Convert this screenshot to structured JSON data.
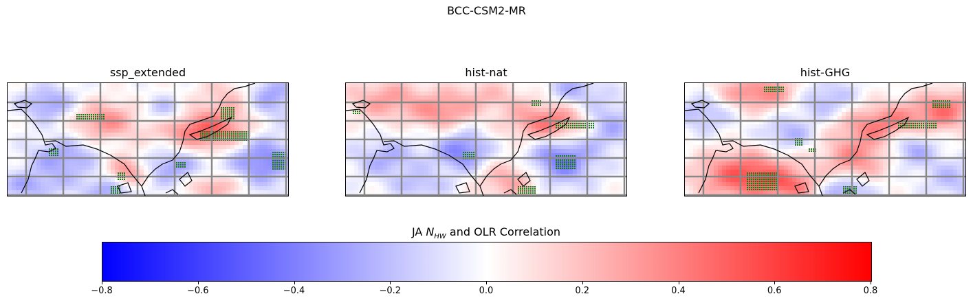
{
  "suptitle": "BCC-CSM2-MR",
  "chart_data": {
    "type": "heatmap",
    "title": "BCC-CSM2-MR",
    "panels": [
      {
        "title": "ssp_extended"
      },
      {
        "title": "hist-nat"
      },
      {
        "title": "hist-GHG"
      }
    ],
    "colorbar": {
      "label_prefix": "JA ",
      "label_symbol": "N",
      "label_subscript": "HW",
      "label_suffix": " and OLR Correlation",
      "range": [
        -0.8,
        0.8
      ],
      "ticks": [
        "−0.8",
        "−0.6",
        "−0.4",
        "−0.2",
        "0.0",
        "0.2",
        "0.4",
        "0.6",
        "0.8"
      ],
      "colormap": "bwr",
      "colors": {
        "low": "#0000ff",
        "mid": "#ffffff",
        "high": "#ff0000"
      }
    },
    "significance_marker_color": "#1a7a1a",
    "grid": true,
    "grid_color": "#888888"
  }
}
